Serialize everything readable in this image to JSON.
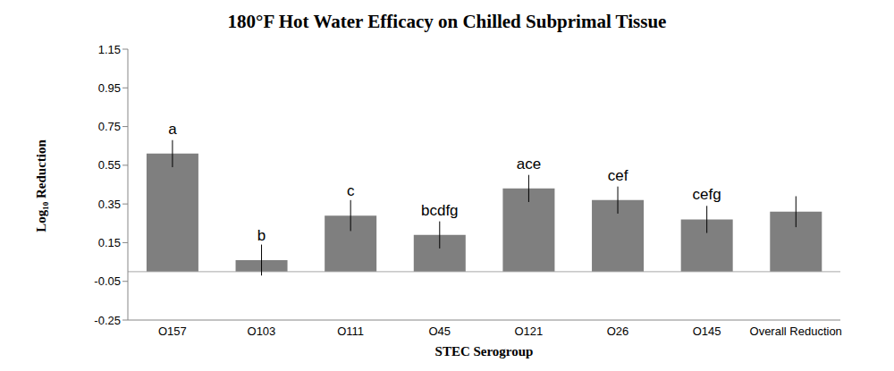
{
  "chart_data": {
    "type": "bar",
    "title": "180°F Hot Water Efficacy on Chilled Subprimal Tissue",
    "x_label": "STEC Serogroup",
    "y_label": "Log₁₀ Reduction",
    "categories": [
      "O157",
      "O103",
      "O111",
      "O45",
      "O121",
      "O26",
      "O145",
      "Overall Reduction"
    ],
    "values": [
      0.61,
      0.06,
      0.29,
      0.19,
      0.43,
      0.37,
      0.27,
      0.31
    ],
    "error_bars": [
      0.07,
      0.08,
      0.08,
      0.07,
      0.07,
      0.07,
      0.07,
      0.08
    ],
    "significance_letters": [
      "a",
      "b",
      "c",
      "bcdfg",
      "ace",
      "cef",
      "cefg",
      null
    ],
    "color": "#7f7f7f",
    "ylim": [
      -0.25,
      1.15
    ],
    "yticks": [
      -0.25,
      -0.05,
      0.15,
      0.35,
      0.55,
      0.75,
      0.95,
      1.15
    ],
    "grid": false
  }
}
